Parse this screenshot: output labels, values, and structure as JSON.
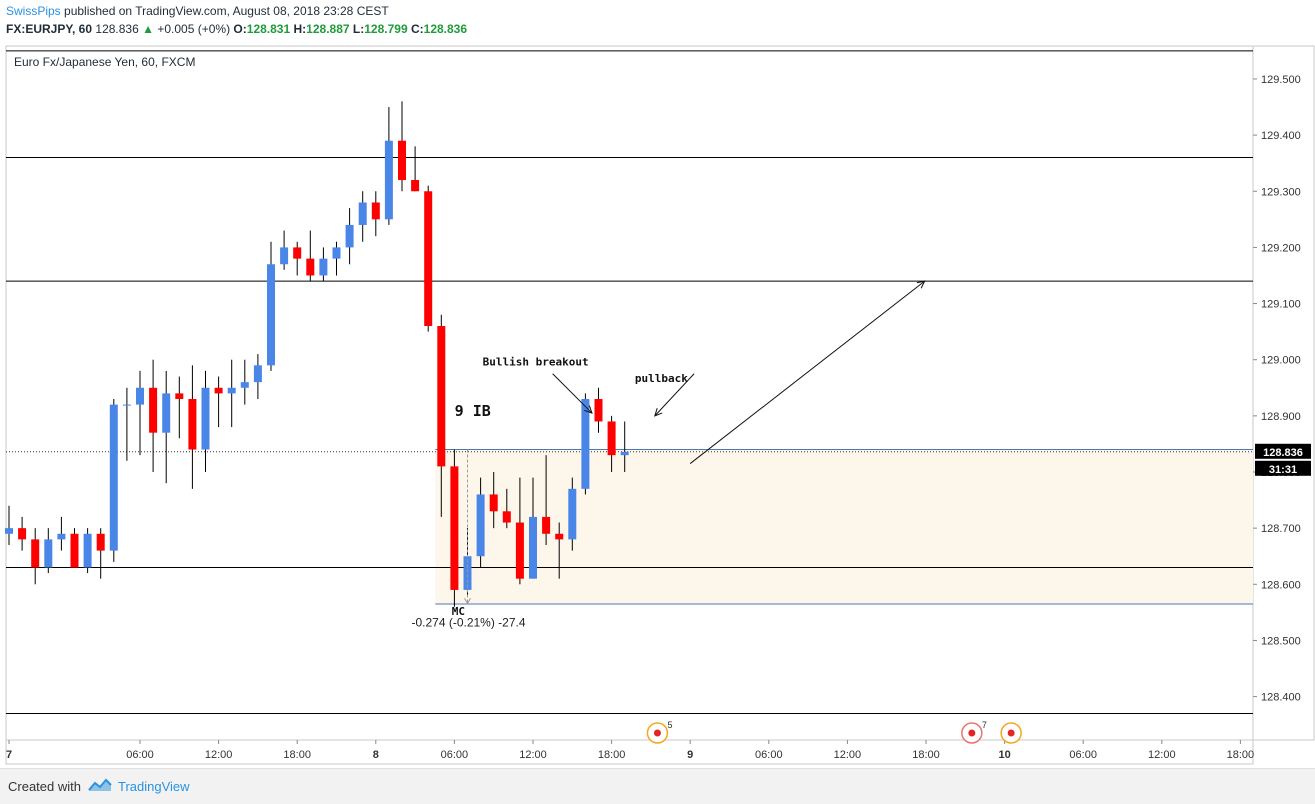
{
  "header": {
    "username": "SwissPips",
    "published_text": "published on TradingView.com, August 08, 2018 23:28 CEST",
    "symbol": "FX:EURJPY, 60",
    "last": "128.836",
    "change": "+0.005 (+0%)",
    "open_label": "O:",
    "open": "128.831",
    "high_label": "H:",
    "high": "128.887",
    "low_label": "L:",
    "low": "128.799",
    "close_label": "C:",
    "close": "128.836"
  },
  "footer": {
    "created_with": "Created with",
    "brand": "TradingView"
  },
  "colors": {
    "up": "#4a86e8",
    "down": "#ff0000",
    "zone": "#fdf6ea",
    "zone_line": "#4a78b5",
    "text": "#1f2c37"
  },
  "chart_data": {
    "type": "candlestick",
    "title": "Euro Fx/Japanese Yen, 60, FXCM",
    "ylim": [
      128.35,
      129.65
    ],
    "y_ticks": [
      "129.500",
      "129.400",
      "129.300",
      "129.200",
      "129.100",
      "129.000",
      "128.900",
      "128.800",
      "128.700",
      "128.600",
      "128.500",
      "128.400"
    ],
    "x_ticks": [
      {
        "label": "7",
        "i": 0,
        "bold": true
      },
      {
        "label": "06:00",
        "i": 10
      },
      {
        "label": "12:00",
        "i": 16
      },
      {
        "label": "18:00",
        "i": 22
      },
      {
        "label": "8",
        "i": 28,
        "bold": true
      },
      {
        "label": "06:00",
        "i": 34
      },
      {
        "label": "12:00",
        "i": 40
      },
      {
        "label": "18:00",
        "i": 46
      },
      {
        "label": "9",
        "i": 52,
        "bold": true
      },
      {
        "label": "06:00",
        "i": 58
      },
      {
        "label": "12:00",
        "i": 64
      },
      {
        "label": "18:00",
        "i": 70
      },
      {
        "label": "10",
        "i": 76,
        "bold": true
      },
      {
        "label": "06:00",
        "i": 82
      },
      {
        "label": "12:00",
        "i": 88
      },
      {
        "label": "18:00",
        "i": 94
      }
    ],
    "candles": [
      [
        128.69,
        128.74,
        128.67,
        128.7
      ],
      [
        128.7,
        128.72,
        128.66,
        128.68
      ],
      [
        128.68,
        128.7,
        128.6,
        128.63
      ],
      [
        128.63,
        128.7,
        128.62,
        128.68
      ],
      [
        128.68,
        128.72,
        128.66,
        128.69
      ],
      [
        128.69,
        128.7,
        128.63,
        128.63
      ],
      [
        128.63,
        128.7,
        128.62,
        128.69
      ],
      [
        128.69,
        128.7,
        128.61,
        128.66
      ],
      [
        128.66,
        128.93,
        128.64,
        128.92
      ],
      [
        128.92,
        128.95,
        128.82,
        128.92
      ],
      [
        128.92,
        128.98,
        128.83,
        128.95
      ],
      [
        128.95,
        129.0,
        128.8,
        128.87
      ],
      [
        128.87,
        128.98,
        128.78,
        128.94
      ],
      [
        128.94,
        128.97,
        128.86,
        128.93
      ],
      [
        128.93,
        128.99,
        128.77,
        128.84
      ],
      [
        128.84,
        128.98,
        128.8,
        128.95
      ],
      [
        128.95,
        128.97,
        128.88,
        128.94
      ],
      [
        128.94,
        129.0,
        128.88,
        128.95
      ],
      [
        128.95,
        129.0,
        128.92,
        128.96
      ],
      [
        128.96,
        129.01,
        128.93,
        128.99
      ],
      [
        128.99,
        129.21,
        128.98,
        129.17
      ],
      [
        129.17,
        129.23,
        129.16,
        129.2
      ],
      [
        129.2,
        129.21,
        129.15,
        129.18
      ],
      [
        129.18,
        129.23,
        129.14,
        129.15
      ],
      [
        129.15,
        129.2,
        129.14,
        129.18
      ],
      [
        129.18,
        129.21,
        129.15,
        129.2
      ],
      [
        129.2,
        129.27,
        129.17,
        129.24
      ],
      [
        129.24,
        129.3,
        129.21,
        129.28
      ],
      [
        129.28,
        129.3,
        129.22,
        129.25
      ],
      [
        129.25,
        129.45,
        129.24,
        129.39
      ],
      [
        129.39,
        129.46,
        129.3,
        129.32
      ],
      [
        129.32,
        129.38,
        129.3,
        129.3
      ],
      [
        129.3,
        129.31,
        129.05,
        129.06
      ],
      [
        129.06,
        129.08,
        128.72,
        128.81
      ],
      [
        128.81,
        128.84,
        128.56,
        128.59
      ],
      [
        128.59,
        128.7,
        128.58,
        128.65
      ],
      [
        128.65,
        128.79,
        128.63,
        128.76
      ],
      [
        128.76,
        128.8,
        128.7,
        128.73
      ],
      [
        128.73,
        128.77,
        128.7,
        128.71
      ],
      [
        128.71,
        128.79,
        128.6,
        128.61
      ],
      [
        128.61,
        128.79,
        128.61,
        128.72
      ],
      [
        128.72,
        128.83,
        128.67,
        128.69
      ],
      [
        128.69,
        128.71,
        128.61,
        128.68
      ],
      [
        128.68,
        128.79,
        128.66,
        128.77
      ],
      [
        128.77,
        128.94,
        128.76,
        128.93
      ],
      [
        128.93,
        128.95,
        128.87,
        128.89
      ],
      [
        128.89,
        128.9,
        128.8,
        128.83
      ],
      [
        128.83,
        128.89,
        128.8,
        128.836
      ]
    ],
    "price_label": "128.836",
    "countdown_label": "31:31",
    "levels": [
      129.55,
      129.36,
      129.14,
      128.63,
      128.37
    ],
    "zone": {
      "from_index": 33,
      "top": 128.84,
      "bottom": 128.565
    },
    "measure": {
      "index": 35,
      "from": 128.84,
      "to": 128.566,
      "label": "-0.274 (-0.21%) -27.4"
    },
    "annotations": [
      {
        "text": "Bullish breakout",
        "index": 40.2,
        "price": 128.99,
        "bold": true
      },
      {
        "text": "pullback",
        "index": 49.8,
        "price": 128.96,
        "bold": true
      },
      {
        "text": "9 IB",
        "index": 35.4,
        "price": 128.9,
        "bold": true,
        "large": true
      },
      {
        "text": "MC",
        "index": 34.3,
        "price": 128.545,
        "bold": true
      }
    ],
    "arrows": [
      {
        "from_index": 41.5,
        "from_price": 128.975,
        "to_index": 44.5,
        "to_price": 128.905
      },
      {
        "from_index": 52.3,
        "from_price": 128.975,
        "to_index": 49.3,
        "to_price": 128.9
      },
      {
        "from_index": 52.0,
        "from_price": 128.815,
        "to_index": 69.9,
        "to_price": 129.14
      }
    ],
    "events": [
      {
        "index": 49.5,
        "count": "5",
        "style": "gold"
      },
      {
        "index": 73.5,
        "count": "7",
        "style": "red"
      },
      {
        "index": 76.5,
        "count": "",
        "style": "gold"
      }
    ]
  }
}
